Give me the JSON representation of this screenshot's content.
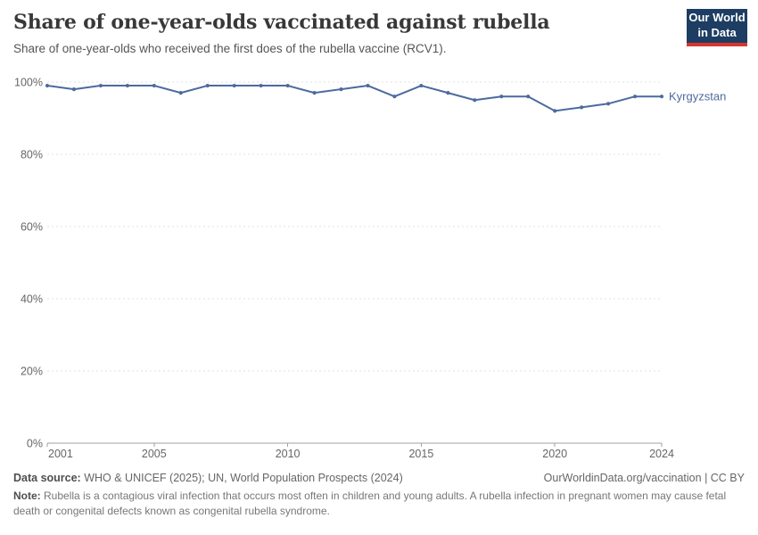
{
  "header": {
    "title": "Share of one-year-olds vaccinated against rubella",
    "subtitle": "Share of one-year-olds who received the first does of the rubella vaccine (RCV1).",
    "logo": {
      "line1": "Our World",
      "line2": "in Data"
    }
  },
  "chart_data": {
    "type": "line",
    "title": "Share of one-year-olds vaccinated against rubella",
    "x": [
      2001,
      2002,
      2003,
      2004,
      2005,
      2006,
      2007,
      2008,
      2009,
      2010,
      2011,
      2012,
      2013,
      2014,
      2015,
      2016,
      2017,
      2018,
      2019,
      2020,
      2021,
      2022,
      2023,
      2024
    ],
    "series": [
      {
        "name": "Kyrgyzstan",
        "values": [
          99,
          98,
          99,
          99,
          99,
          97,
          99,
          99,
          99,
          99,
          97,
          98,
          99,
          96,
          99,
          97,
          95,
          96,
          96,
          92,
          93,
          94,
          96,
          96
        ]
      }
    ],
    "xlabel": "",
    "ylabel": "",
    "xlim": [
      2001,
      2024
    ],
    "ylim": [
      0,
      100
    ],
    "xticks": [
      2001,
      2005,
      2010,
      2015,
      2020,
      2024
    ],
    "yticks": [
      0,
      20,
      40,
      60,
      80,
      100
    ],
    "ytick_suffix": "%",
    "grid": "horizontal-dashed",
    "legend_position": "end-of-line-label"
  },
  "footer": {
    "source_label": "Data source:",
    "source_text": "WHO & UNICEF (2025); UN, World Population Prospects (2024)",
    "link_text": "OurWorldinData.org/vaccination | CC BY",
    "note_label": "Note:",
    "note_text": "Rubella is a contagious viral infection that occurs most often in children and young adults. A rubella infection in pregnant women may cause fetal death or congenital defects known as congenital rubella syndrome."
  },
  "colors": {
    "line": "#4C6B9F",
    "grid": "#e0e0e0",
    "axis": "#a1a1a1",
    "tick_text": "#666666",
    "logo_bg": "#1d3d63",
    "logo_accent": "#d8352f"
  }
}
